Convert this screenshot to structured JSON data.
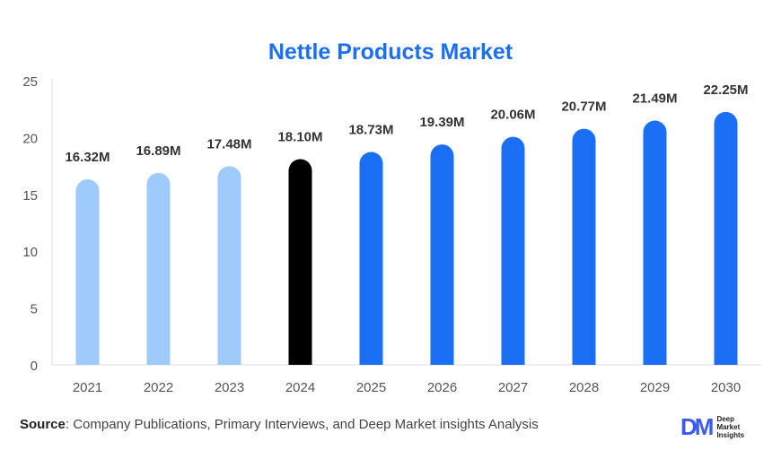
{
  "chart_data": {
    "type": "bar",
    "title": "Nettle Products Market",
    "categories": [
      "2021",
      "2022",
      "2023",
      "2024",
      "2025",
      "2026",
      "2027",
      "2028",
      "2029",
      "2030"
    ],
    "values": [
      16.32,
      16.89,
      17.48,
      18.1,
      18.73,
      19.39,
      20.06,
      20.77,
      21.49,
      22.25
    ],
    "data_labels": [
      "16.32M",
      "16.89M",
      "17.48M",
      "18.10M",
      "18.73M",
      "19.39M",
      "20.06M",
      "20.77M",
      "21.49M",
      "22.25M"
    ],
    "bar_colors": [
      "#9ecbfc",
      "#9ecbfc",
      "#9ecbfc",
      "#000000",
      "#1a6ff5",
      "#1a6ff5",
      "#1a6ff5",
      "#1a6ff5",
      "#1a6ff5",
      "#1a6ff5"
    ],
    "ylim": [
      0,
      25
    ],
    "yticks": [
      0,
      5,
      10,
      15,
      20,
      25
    ],
    "xlabel": "",
    "ylabel": "",
    "grid": false
  },
  "source": {
    "label": "Source",
    "text": ": Company Publications, Primary Interviews, and Deep Market insights Analysis"
  },
  "logo": {
    "mark": "DM",
    "lines": [
      "Deep",
      "Market",
      "Insights"
    ]
  }
}
